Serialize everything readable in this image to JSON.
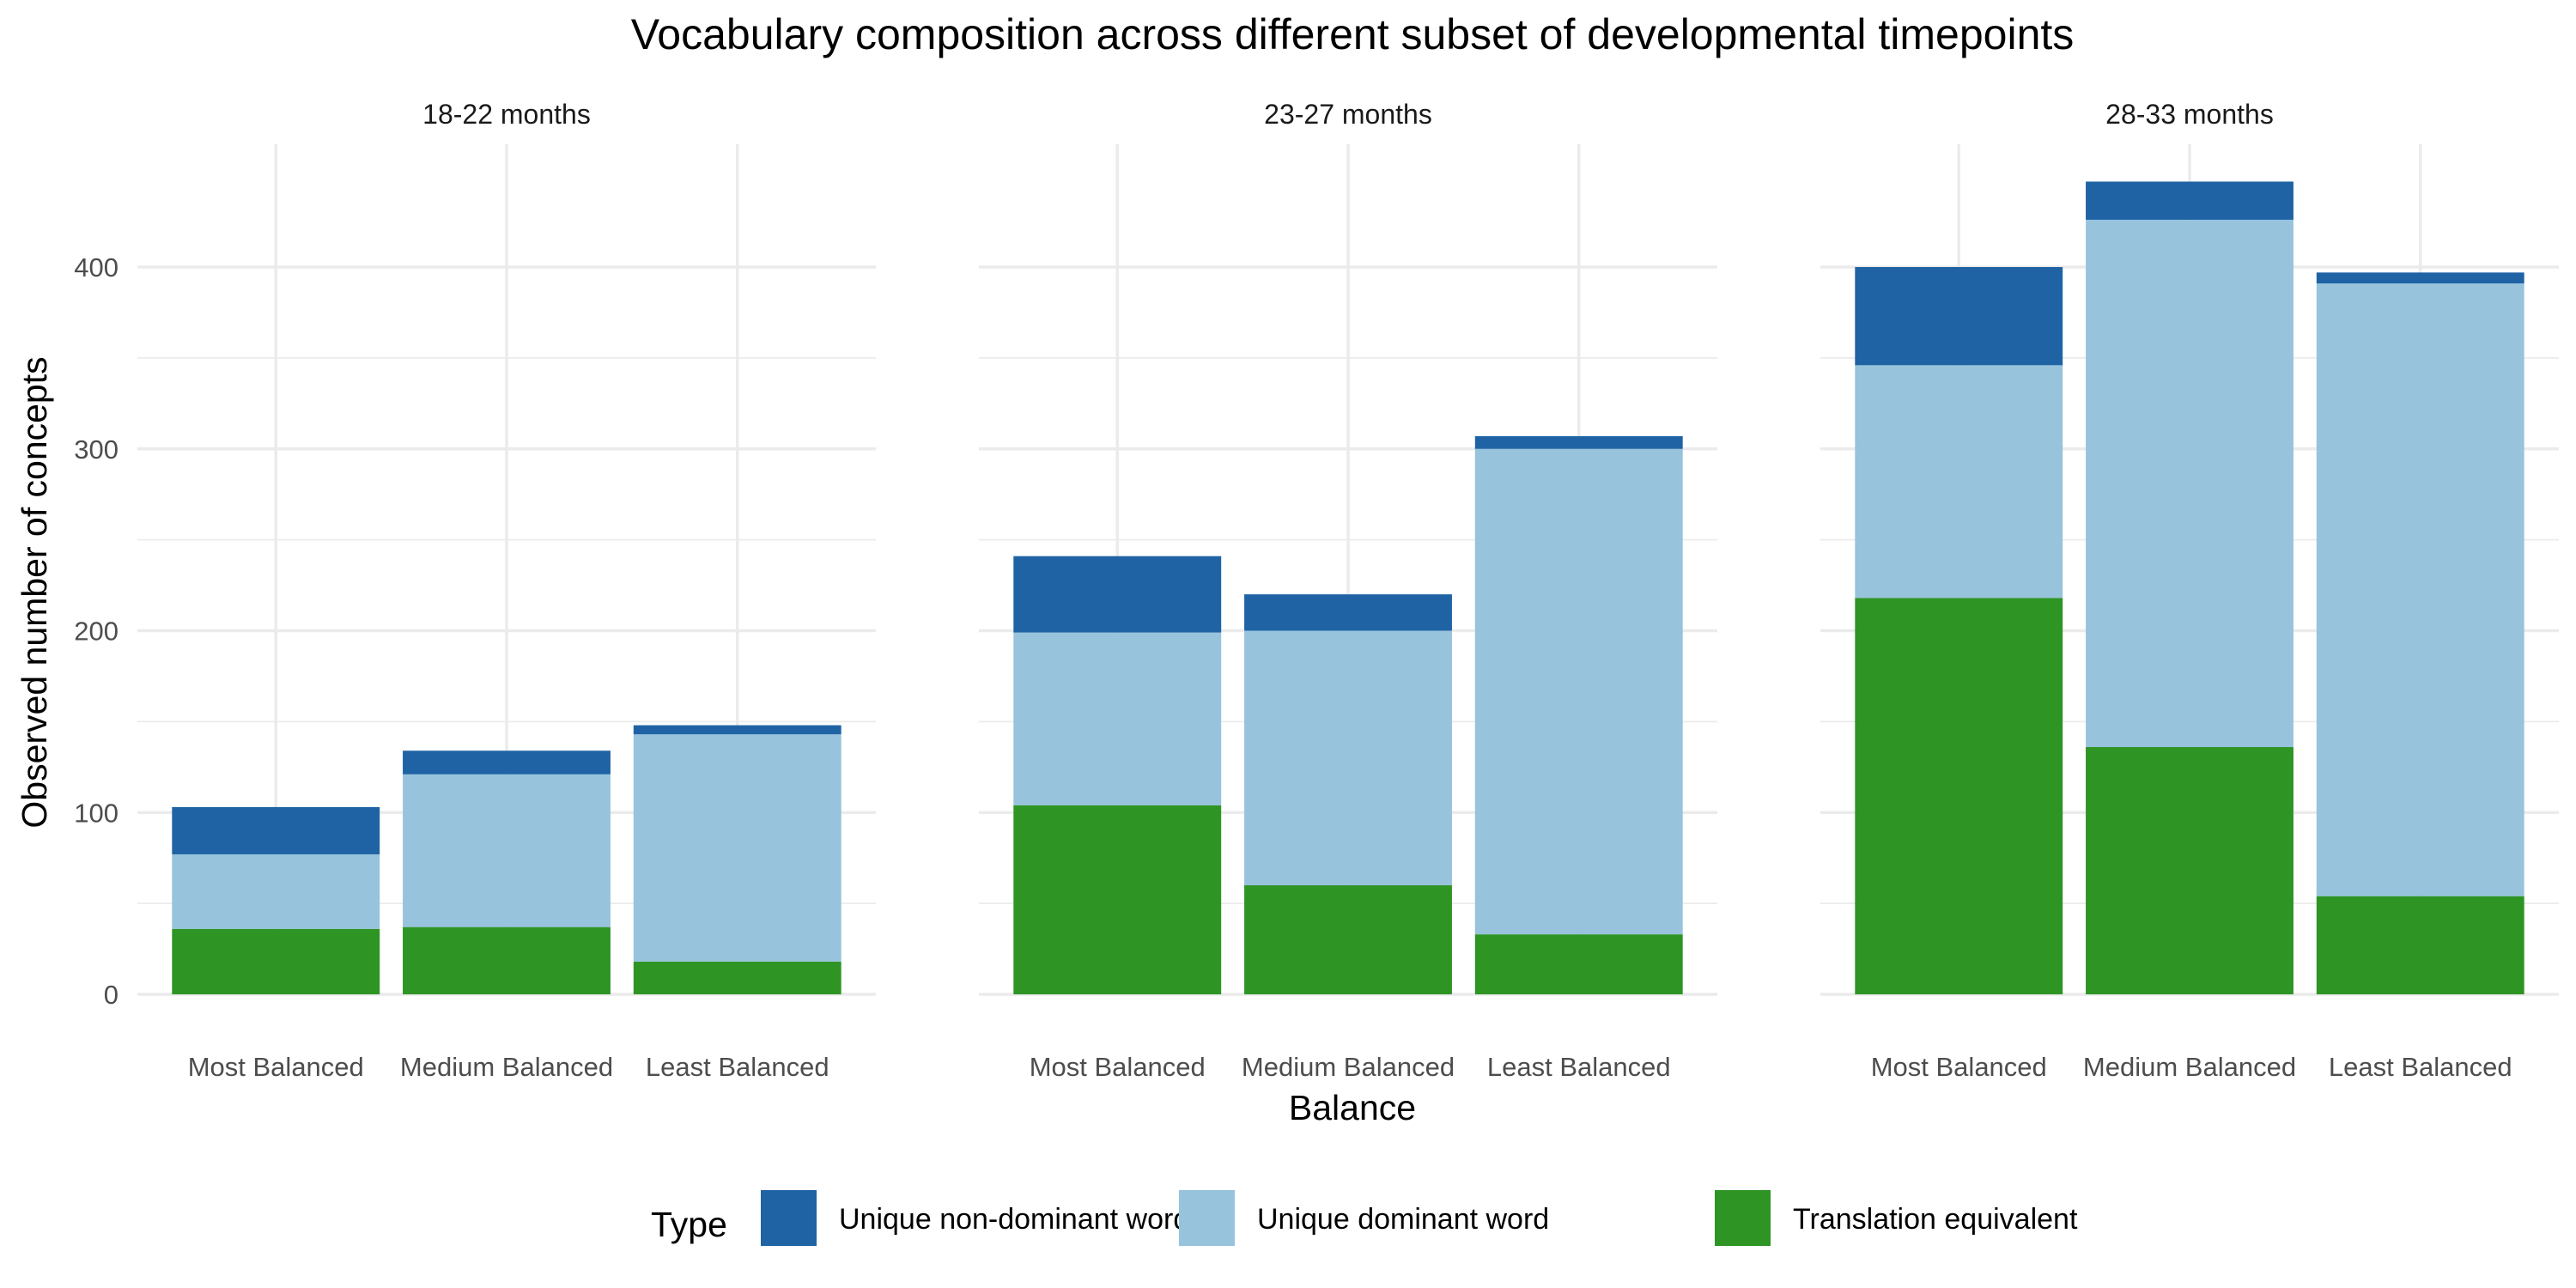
{
  "chart_data": {
    "type": "bar",
    "stacked": true,
    "title": "Vocabulary composition across different subset of developmental timepoints",
    "xlabel": "Balance",
    "ylabel": "Observed number of concepts",
    "ylim": [
      0,
      450
    ],
    "yticks": [
      0,
      100,
      200,
      300,
      400
    ],
    "categories": [
      "Most Balanced",
      "Medium Balanced",
      "Least Balanced"
    ],
    "grid": true,
    "legend": {
      "title": "Type",
      "position": "bottom"
    },
    "panels": [
      {
        "label": "18-22 months",
        "series": [
          {
            "name": "Translation equivalent",
            "values": [
              36,
              37,
              18
            ]
          },
          {
            "name": "Unique dominant word",
            "values": [
              41,
              84,
              125
            ]
          },
          {
            "name": "Unique non-dominant word",
            "values": [
              26,
              13,
              5
            ]
          }
        ]
      },
      {
        "label": "23-27 months",
        "series": [
          {
            "name": "Translation equivalent",
            "values": [
              104,
              60,
              33
            ]
          },
          {
            "name": "Unique dominant word",
            "values": [
              95,
              140,
              267
            ]
          },
          {
            "name": "Unique non-dominant word",
            "values": [
              42,
              20,
              7
            ]
          }
        ]
      },
      {
        "label": "28-33 months",
        "series": [
          {
            "name": "Translation equivalent",
            "values": [
              218,
              136,
              54
            ]
          },
          {
            "name": "Unique dominant word",
            "values": [
              128,
              290,
              337
            ]
          },
          {
            "name": "Unique non-dominant word",
            "values": [
              54,
              21,
              6
            ]
          }
        ]
      }
    ],
    "legend_items": [
      {
        "name": "Unique non-dominant word",
        "color": "#1f63a5"
      },
      {
        "name": "Unique dominant word",
        "color": "#97c3dc"
      },
      {
        "name": "Translation equivalent",
        "color": "#2e9424"
      }
    ],
    "colors": {
      "Translation equivalent": "#2e9424",
      "Unique dominant word": "#97c3dc",
      "Unique non-dominant word": "#1f63a5"
    }
  }
}
